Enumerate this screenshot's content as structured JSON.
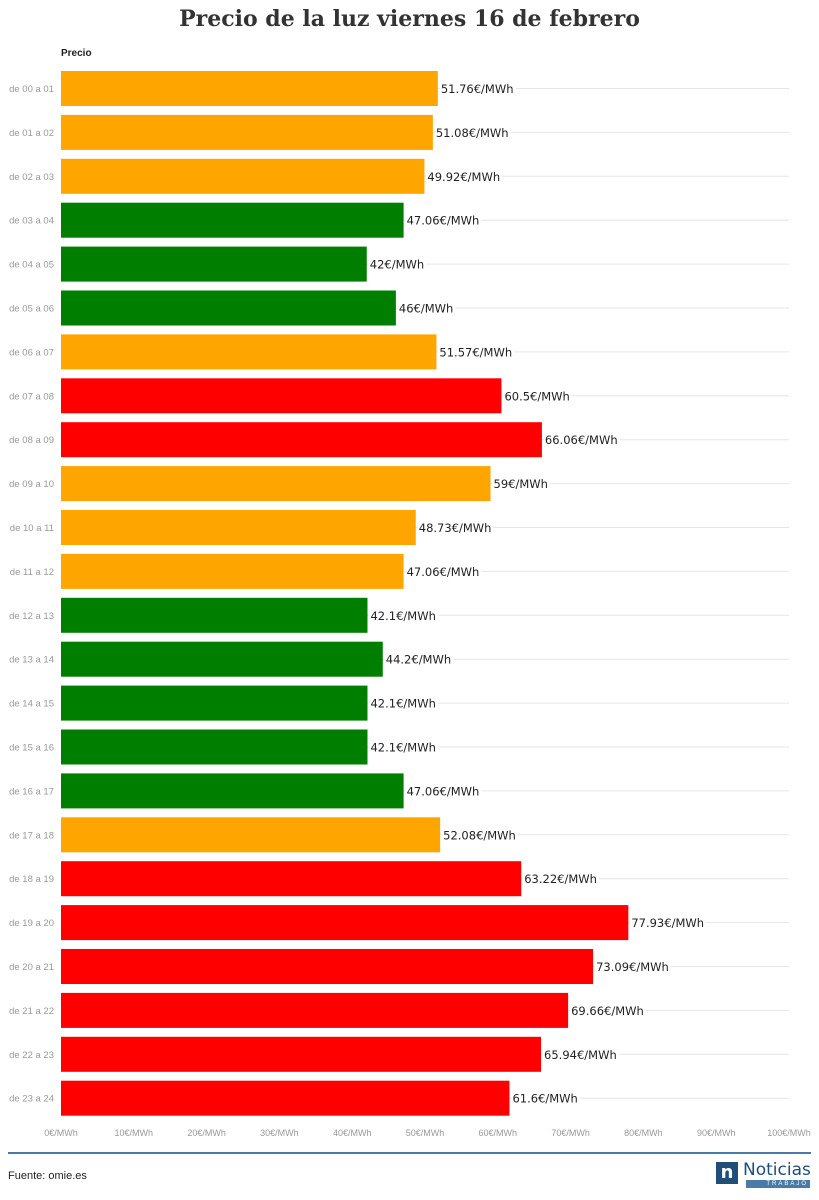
{
  "title": "Precio de la luz viernes 16 de febrero",
  "source": "Fuente: omie.es",
  "logo": {
    "brand": "Noticias",
    "sub": "TRABAJO",
    "mark": "n"
  },
  "colors": {
    "low": "#007e00",
    "mid": "#ffa500",
    "high": "#ff0000",
    "grid": "#e6e6e6",
    "axis_text": "#999999"
  },
  "chart_data": {
    "type": "bar",
    "orientation": "horizontal",
    "series_label": "Precio",
    "unit": "€/MWh",
    "xlim": [
      0,
      100
    ],
    "x_ticks": [
      "0€/MWh",
      "10€/MWh",
      "20€/MWh",
      "30€/MWh",
      "40€/MWh",
      "50€/MWh",
      "60€/MWh",
      "70€/MWh",
      "80€/MWh",
      "90€/MWh",
      "100€/MWh"
    ],
    "grid": true,
    "categories": [
      "de 00 a 01",
      "de 01 a 02",
      "de 02 a 03",
      "de 03 a 04",
      "de 04 a 05",
      "de 05 a 06",
      "de 06 a 07",
      "de 07 a 08",
      "de 08 a 09",
      "de 09 a 10",
      "de 10 a 11",
      "de 11 a 12",
      "de 12 a 13",
      "de 13 a 14",
      "de 14 a 15",
      "de 15 a 16",
      "de 16 a 17",
      "de 17 a 18",
      "de 18 a 19",
      "de 19 a 20",
      "de 20 a 21",
      "de 21 a 22",
      "de 22 a 23",
      "de 23 a 24"
    ],
    "values": [
      51.76,
      51.08,
      49.92,
      47.06,
      42,
      46,
      51.57,
      60.5,
      66.06,
      59,
      48.73,
      47.06,
      42.1,
      44.2,
      42.1,
      42.1,
      47.06,
      52.08,
      63.22,
      77.93,
      73.09,
      69.66,
      65.94,
      61.6
    ],
    "labels": [
      "51.76€/MWh",
      "51.08€/MWh",
      "49.92€/MWh",
      "47.06€/MWh",
      "42€/MWh",
      "46€/MWh",
      "51.57€/MWh",
      "60.5€/MWh",
      "66.06€/MWh",
      "59€/MWh",
      "48.73€/MWh",
      "47.06€/MWh",
      "42.1€/MWh",
      "44.2€/MWh",
      "42.1€/MWh",
      "42.1€/MWh",
      "47.06€/MWh",
      "52.08€/MWh",
      "63.22€/MWh",
      "77.93€/MWh",
      "73.09€/MWh",
      "69.66€/MWh",
      "65.94€/MWh",
      "61.6€/MWh"
    ],
    "bar_colors": [
      "mid",
      "mid",
      "mid",
      "low",
      "low",
      "low",
      "mid",
      "high",
      "high",
      "mid",
      "mid",
      "mid",
      "low",
      "low",
      "low",
      "low",
      "low",
      "mid",
      "high",
      "high",
      "high",
      "high",
      "high",
      "high"
    ]
  }
}
